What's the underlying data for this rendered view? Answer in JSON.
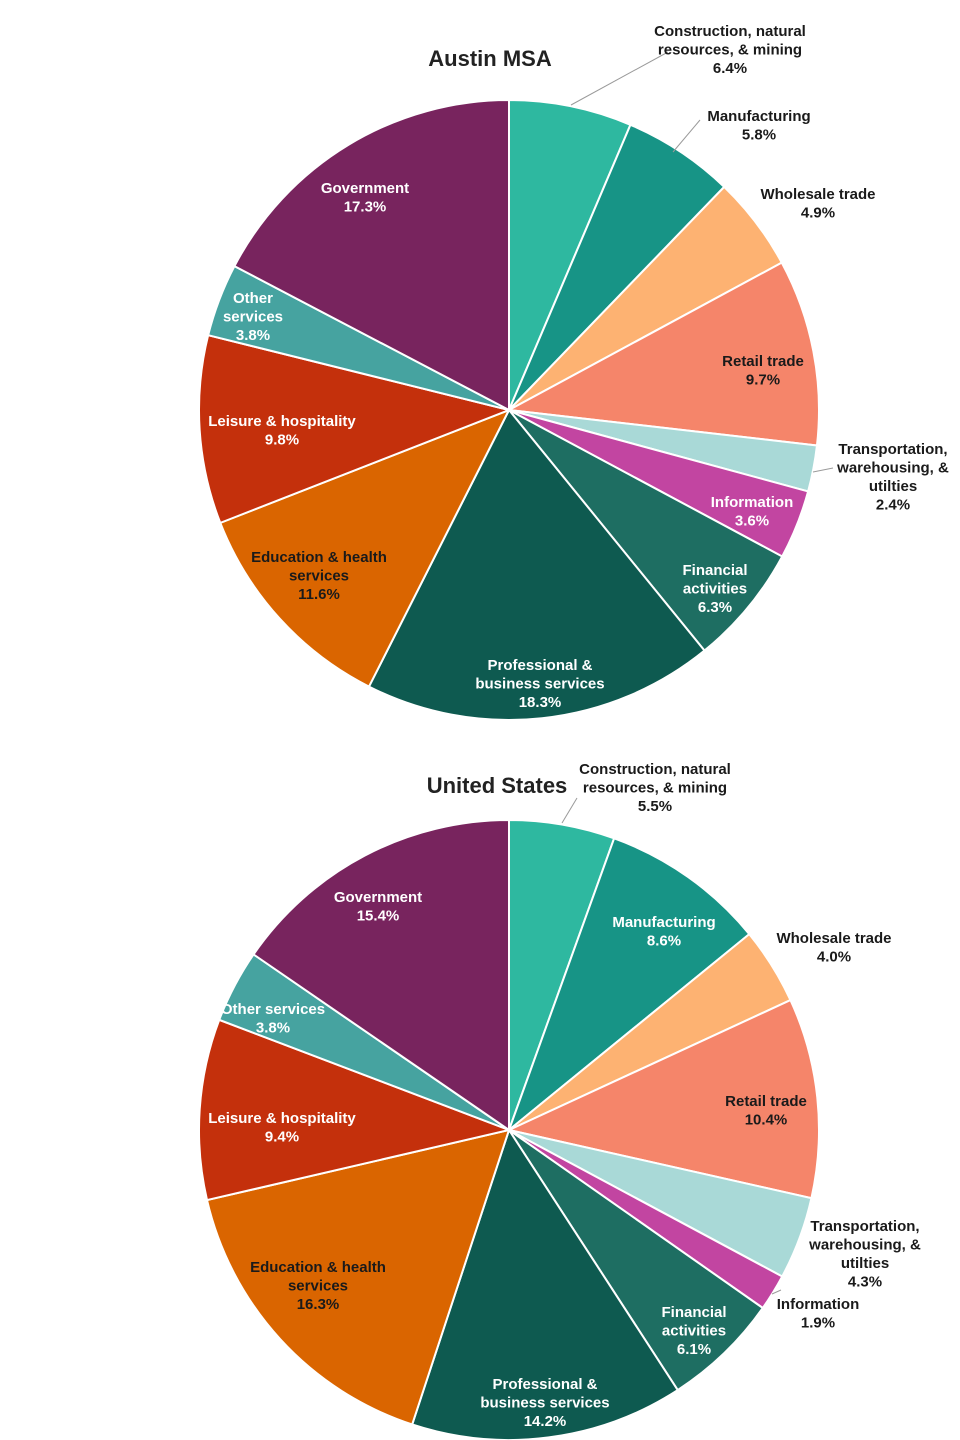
{
  "chart_data": [
    {
      "type": "pie",
      "title": "Austin MSA",
      "slices": [
        {
          "label": [
            "Construction, natural",
            "resources, & mining"
          ],
          "value": 6.4,
          "value_label": "6.4%",
          "color": "#2eb8a0"
        },
        {
          "label": [
            "Manufacturing"
          ],
          "value": 5.8,
          "value_label": "5.8%",
          "color": "#179486"
        },
        {
          "label": [
            "Wholesale trade"
          ],
          "value": 4.9,
          "value_label": "4.9%",
          "color": "#fdb272"
        },
        {
          "label": [
            "Retail trade"
          ],
          "value": 9.7,
          "value_label": "9.7%",
          "color": "#f5856a"
        },
        {
          "label": [
            "Transportation,",
            "warehousing, &",
            "utilties"
          ],
          "value": 2.4,
          "value_label": "2.4%",
          "color": "#a9d9d7"
        },
        {
          "label": [
            "Information"
          ],
          "value": 3.6,
          "value_label": "3.6%",
          "color": "#c245a1"
        },
        {
          "label": [
            "Financial",
            "activities"
          ],
          "value": 6.3,
          "value_label": "6.3%",
          "color": "#1e6e62"
        },
        {
          "label": [
            "Professional &",
            "business services"
          ],
          "value": 18.3,
          "value_label": "18.3%",
          "color": "#0e5a50"
        },
        {
          "label": [
            "Education & health",
            "services"
          ],
          "value": 11.6,
          "value_label": "11.6%",
          "color": "#da6500"
        },
        {
          "label": [
            "Leisure & hospitality"
          ],
          "value": 9.8,
          "value_label": "9.8%",
          "color": "#c4300c"
        },
        {
          "label": [
            "Other",
            "services"
          ],
          "value": 3.8,
          "value_label": "3.8%",
          "color": "#46a3a0"
        },
        {
          "label": [
            "Government"
          ],
          "value": 17.3,
          "value_label": "17.3%",
          "color": "#78245e"
        }
      ]
    },
    {
      "type": "pie",
      "title": "United States",
      "slices": [
        {
          "label": [
            "Construction, natural",
            "resources, & mining"
          ],
          "value": 5.5,
          "value_label": "5.5%",
          "color": "#2eb8a0"
        },
        {
          "label": [
            "Manufacturing"
          ],
          "value": 8.6,
          "value_label": "8.6%",
          "color": "#179486"
        },
        {
          "label": [
            "Wholesale trade"
          ],
          "value": 4.0,
          "value_label": "4.0%",
          "color": "#fdb272"
        },
        {
          "label": [
            "Retail trade"
          ],
          "value": 10.4,
          "value_label": "10.4%",
          "color": "#f5856a"
        },
        {
          "label": [
            "Transportation,",
            "warehousing, &",
            "utilties"
          ],
          "value": 4.3,
          "value_label": "4.3%",
          "color": "#a9d9d7"
        },
        {
          "label": [
            "Information"
          ],
          "value": 1.9,
          "value_label": "1.9%",
          "color": "#c245a1"
        },
        {
          "label": [
            "Financial",
            "activities"
          ],
          "value": 6.1,
          "value_label": "6.1%",
          "color": "#1e6e62"
        },
        {
          "label": [
            "Professional &",
            "business services"
          ],
          "value": 14.2,
          "value_label": "14.2%",
          "color": "#0e5a50"
        },
        {
          "label": [
            "Education & health",
            "services"
          ],
          "value": 16.3,
          "value_label": "16.3%",
          "color": "#da6500"
        },
        {
          "label": [
            "Leisure & hospitality"
          ],
          "value": 9.4,
          "value_label": "9.4%",
          "color": "#c4300c"
        },
        {
          "label": [
            "Other services"
          ],
          "value": 3.8,
          "value_label": "3.8%",
          "color": "#46a3a0"
        },
        {
          "label": [
            "Government"
          ],
          "value": 15.4,
          "value_label": "15.4%",
          "color": "#78245e"
        }
      ]
    }
  ]
}
